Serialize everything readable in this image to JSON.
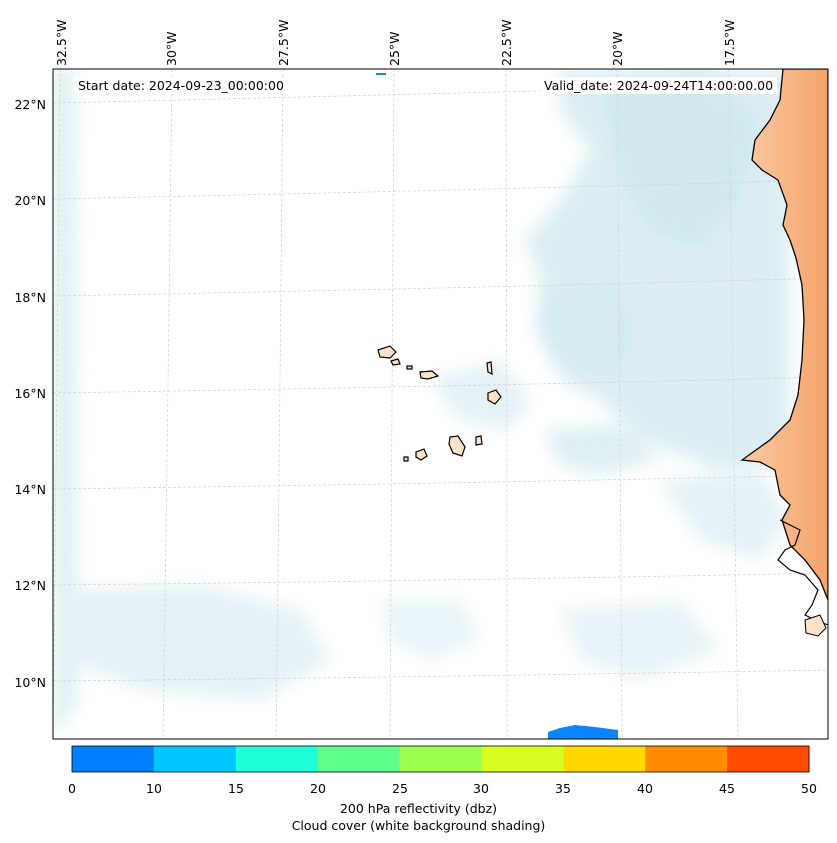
{
  "map": {
    "start_date": "Start date: 2024-09-23_00:00:00",
    "valid_date": "Valid_date: 2024-09-24T14:00:00.00",
    "longitude_labels": [
      "32.5°W",
      "30°W",
      "27.5°W",
      "25°W",
      "22.5°W",
      "20°W",
      "17.5°W"
    ],
    "latitude_labels": [
      "22°N",
      "20°N",
      "18°N",
      "16°N",
      "14°N",
      "12°N",
      "10°N"
    ]
  },
  "colorbar": {
    "ticks": [
      "0",
      "10",
      "15",
      "20",
      "25",
      "30",
      "35",
      "40",
      "45",
      "50"
    ],
    "colors": [
      "#0080ff",
      "#00c8ff",
      "#20ffd8",
      "#60ff8c",
      "#9cff50",
      "#d8ff20",
      "#ffd800",
      "#ff8c00",
      "#ff4c00"
    ],
    "label_line1": "200 hPa reflectivity (dbz)",
    "label_line2": "Cloud cover (white background shading)"
  },
  "colors": {
    "land_africa": "#f6a86e",
    "land_islands": "#fde3c6",
    "cloud": "#bde0ea",
    "reflectivity": "#0a84ff"
  }
}
